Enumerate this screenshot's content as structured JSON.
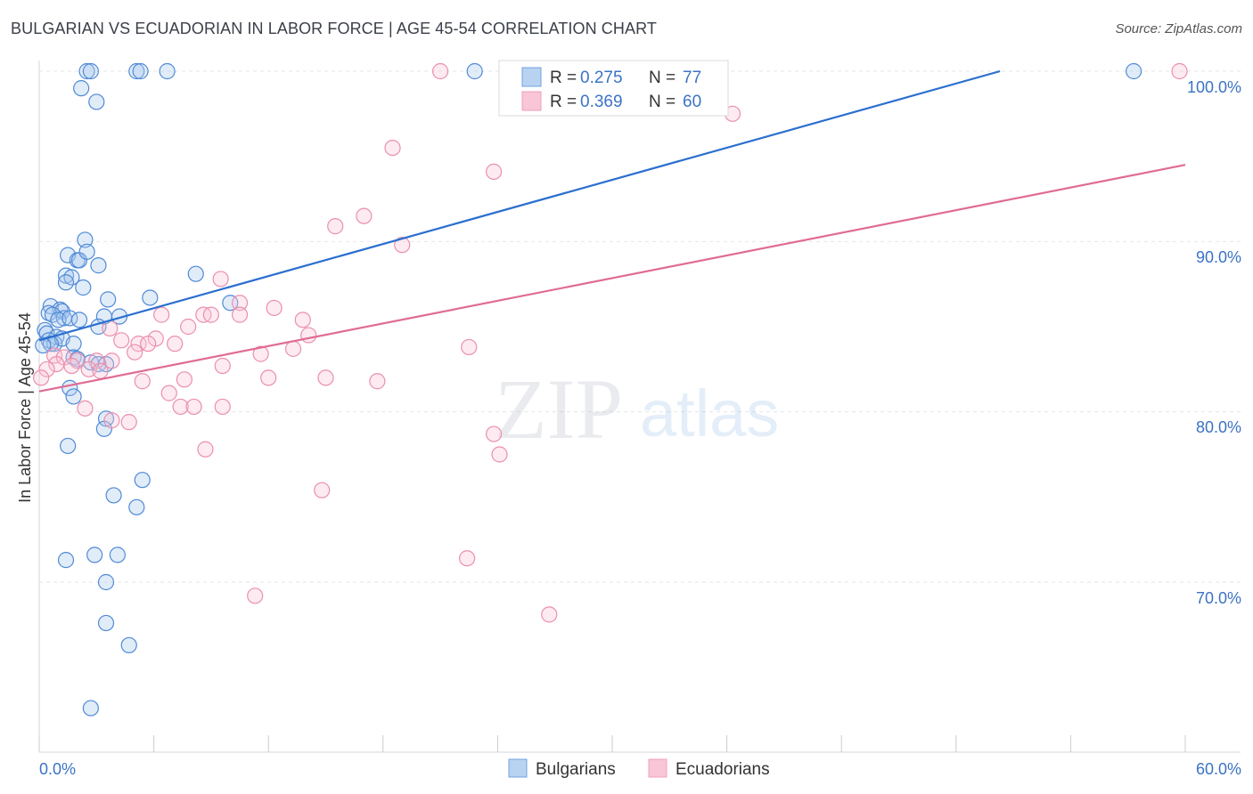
{
  "title": "BULGARIAN VS ECUADORIAN IN LABOR FORCE | AGE 45-54 CORRELATION CHART",
  "source": "Source: ZipAtlas.com",
  "watermark": {
    "zip": "ZIP",
    "atlas": "atlas"
  },
  "colors": {
    "blue": "#6fa3e0",
    "blue_line": "#2a6fcf",
    "pink": "#f0a0b8",
    "pink_line": "#e06b95",
    "tick_text": "#3b73c4",
    "grid": "#e3e6ea"
  },
  "legend": {
    "rows": [
      {
        "r_label": "R =",
        "r_value": "0.275",
        "n_label": "N =",
        "n_value": "77"
      },
      {
        "r_label": "R =",
        "r_value": "0.369",
        "n_label": "N =",
        "n_value": "60"
      }
    ]
  },
  "chart_data": {
    "type": "scatter",
    "title": "BULGARIAN VS ECUADORIAN IN LABOR FORCE | AGE 45-54 CORRELATION CHART",
    "xlabel": "",
    "ylabel": "In Labor Force | Age 45-54",
    "xlim": [
      0,
      60
    ],
    "ylim": [
      60,
      101.5
    ],
    "x_tick_labels": [
      "0.0%",
      "60.0%"
    ],
    "y_ticks": [
      70,
      80,
      90,
      100
    ],
    "y_tick_labels": [
      "70.0%",
      "80.0%",
      "90.0%",
      "100.0%"
    ],
    "grid": true,
    "legend_position": "bottom-center",
    "series": [
      {
        "name": "Bulgarians",
        "color": "#6fa3e0",
        "r": 0.275,
        "n": 77,
        "trend": {
          "x0": 0,
          "y0": 84.2,
          "x1": 50.3,
          "y1": 100
        },
        "points": [
          [
            2.5,
            100
          ],
          [
            2.7,
            100
          ],
          [
            5.1,
            100
          ],
          [
            5.3,
            100
          ],
          [
            6.7,
            100
          ],
          [
            22.8,
            100
          ],
          [
            57.3,
            100
          ],
          [
            2.2,
            99
          ],
          [
            3.0,
            98.2
          ],
          [
            2.4,
            90.1
          ],
          [
            1.5,
            89.2
          ],
          [
            2.0,
            88.9
          ],
          [
            2.1,
            88.9
          ],
          [
            2.5,
            89.4
          ],
          [
            3.1,
            88.6
          ],
          [
            1.4,
            88.0
          ],
          [
            1.7,
            87.9
          ],
          [
            1.4,
            87.6
          ],
          [
            2.3,
            87.3
          ],
          [
            8.2,
            88.1
          ],
          [
            3.6,
            86.6
          ],
          [
            5.8,
            86.7
          ],
          [
            10.0,
            86.4
          ],
          [
            0.6,
            86.2
          ],
          [
            1.1,
            86.0
          ],
          [
            1.2,
            85.9
          ],
          [
            0.5,
            85.8
          ],
          [
            0.7,
            85.7
          ],
          [
            1.3,
            85.5
          ],
          [
            1.0,
            85.4
          ],
          [
            1.6,
            85.5
          ],
          [
            2.1,
            85.4
          ],
          [
            3.4,
            85.6
          ],
          [
            4.2,
            85.6
          ],
          [
            3.1,
            85.0
          ],
          [
            0.3,
            84.8
          ],
          [
            0.4,
            84.6
          ],
          [
            0.9,
            84.4
          ],
          [
            0.5,
            84.2
          ],
          [
            0.8,
            84.0
          ],
          [
            1.2,
            84.3
          ],
          [
            0.6,
            84.0
          ],
          [
            0.2,
            83.9
          ],
          [
            1.8,
            84.0
          ],
          [
            1.8,
            83.2
          ],
          [
            2.7,
            82.9
          ],
          [
            3.1,
            82.8
          ],
          [
            3.5,
            82.8
          ],
          [
            2.0,
            83.1
          ],
          [
            1.6,
            81.4
          ],
          [
            1.8,
            80.9
          ],
          [
            3.5,
            79.6
          ],
          [
            3.4,
            79.0
          ],
          [
            1.5,
            78.0
          ],
          [
            5.4,
            76.0
          ],
          [
            3.9,
            75.1
          ],
          [
            5.1,
            74.4
          ],
          [
            1.4,
            71.3
          ],
          [
            2.9,
            71.6
          ],
          [
            4.1,
            71.6
          ],
          [
            3.5,
            70.0
          ],
          [
            3.5,
            67.6
          ],
          [
            4.7,
            66.3
          ],
          [
            2.7,
            62.6
          ]
        ]
      },
      {
        "name": "Ecuadorians",
        "color": "#f0a0b8",
        "r": 0.369,
        "n": 60,
        "trend": {
          "x0": 0,
          "y0": 81.2,
          "x1": 60,
          "y1": 94.5
        },
        "points": [
          [
            21.0,
            100
          ],
          [
            59.7,
            100
          ],
          [
            36.3,
            97.5
          ],
          [
            18.5,
            95.5
          ],
          [
            23.8,
            94.1
          ],
          [
            17.0,
            91.5
          ],
          [
            15.5,
            90.9
          ],
          [
            19.0,
            89.8
          ],
          [
            9.5,
            87.8
          ],
          [
            10.5,
            86.4
          ],
          [
            12.3,
            86.1
          ],
          [
            6.4,
            85.7
          ],
          [
            8.6,
            85.7
          ],
          [
            9.0,
            85.7
          ],
          [
            10.5,
            85.7
          ],
          [
            13.8,
            85.4
          ],
          [
            7.8,
            85.0
          ],
          [
            3.7,
            84.9
          ],
          [
            14.1,
            84.5
          ],
          [
            6.1,
            84.3
          ],
          [
            4.3,
            84.2
          ],
          [
            5.2,
            84.0
          ],
          [
            5.7,
            84.0
          ],
          [
            7.1,
            84.0
          ],
          [
            13.3,
            83.7
          ],
          [
            22.5,
            83.8
          ],
          [
            5.0,
            83.5
          ],
          [
            11.6,
            83.4
          ],
          [
            0.8,
            83.3
          ],
          [
            1.3,
            83.2
          ],
          [
            2.0,
            83.0
          ],
          [
            3.0,
            83.0
          ],
          [
            3.8,
            83.0
          ],
          [
            0.9,
            82.8
          ],
          [
            1.7,
            82.7
          ],
          [
            2.6,
            82.5
          ],
          [
            3.2,
            82.4
          ],
          [
            9.6,
            82.7
          ],
          [
            0.4,
            82.5
          ],
          [
            7.6,
            81.9
          ],
          [
            5.4,
            81.8
          ],
          [
            12.0,
            82.0
          ],
          [
            15.0,
            82.0
          ],
          [
            17.7,
            81.8
          ],
          [
            6.8,
            81.1
          ],
          [
            7.4,
            80.3
          ],
          [
            8.1,
            80.3
          ],
          [
            9.6,
            80.3
          ],
          [
            2.4,
            80.2
          ],
          [
            3.8,
            79.5
          ],
          [
            4.7,
            79.4
          ],
          [
            23.8,
            78.7
          ],
          [
            8.7,
            77.8
          ],
          [
            24.1,
            77.5
          ],
          [
            14.8,
            75.4
          ],
          [
            22.4,
            71.4
          ],
          [
            11.3,
            69.2
          ],
          [
            26.7,
            68.1
          ],
          [
            0.1,
            82.0
          ]
        ]
      }
    ]
  },
  "bottom_legend": [
    {
      "label": "Bulgarians"
    },
    {
      "label": "Ecuadorians"
    }
  ]
}
